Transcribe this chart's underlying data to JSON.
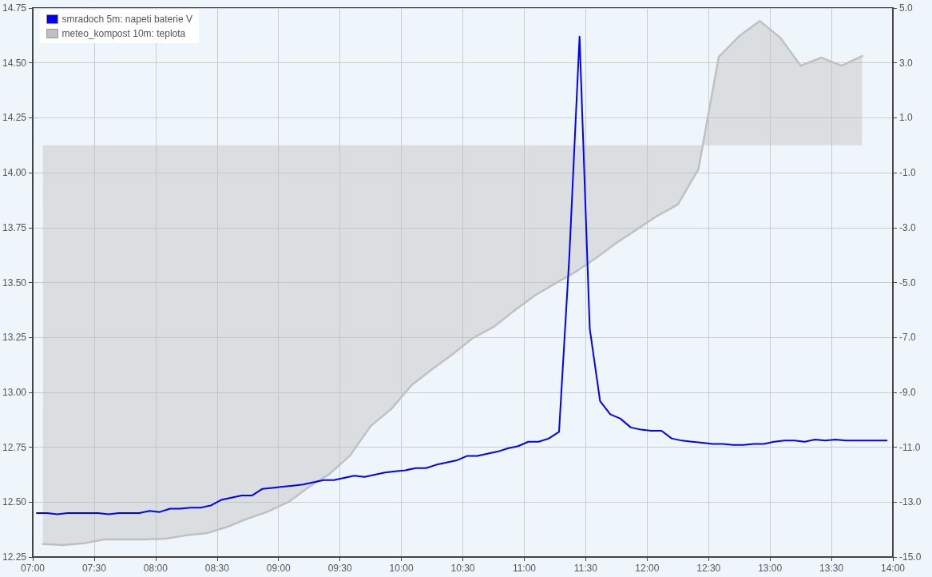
{
  "chart_data": {
    "type": "line",
    "xlim": [
      7,
      14
    ],
    "xticks": [
      {
        "value": 7,
        "label": "07:00"
      },
      {
        "value": 7.5,
        "label": "07:30"
      },
      {
        "value": 8,
        "label": "08:00"
      },
      {
        "value": 8.5,
        "label": "08:30"
      },
      {
        "value": 9,
        "label": "09:00"
      },
      {
        "value": 9.5,
        "label": "09:30"
      },
      {
        "value": 10,
        "label": "10:00"
      },
      {
        "value": 10.5,
        "label": "10:30"
      },
      {
        "value": 11,
        "label": "11:00"
      },
      {
        "value": 11.5,
        "label": "11:30"
      },
      {
        "value": 12,
        "label": "12:00"
      },
      {
        "value": 12.5,
        "label": "12:30"
      },
      {
        "value": 13,
        "label": "13:00"
      },
      {
        "value": 13.5,
        "label": "13:30"
      },
      {
        "value": 14,
        "label": "14:00"
      }
    ],
    "ylim": [
      12.25,
      14.75
    ],
    "yticks": [
      12.25,
      {
        "value": 12.5,
        "label": "12.50"
      },
      12.75,
      {
        "value": 13,
        "label": "13.00"
      },
      13.25,
      {
        "value": 13.5,
        "label": "13.50"
      },
      13.75,
      {
        "value": 14,
        "label": "14.00"
      },
      14.25,
      {
        "value": 14.5,
        "label": "14.50"
      },
      14.75
    ],
    "y2lim": [
      -15,
      5
    ],
    "y2ticks": [
      {
        "value": -15,
        "label": "-15.0"
      },
      {
        "value": -13,
        "label": "-13.0"
      },
      {
        "value": -11,
        "label": "-11.0"
      },
      {
        "value": -9,
        "label": "-9.0"
      },
      {
        "value": -7,
        "label": "-7.0"
      },
      {
        "value": -5,
        "label": "-5.0"
      },
      {
        "value": -3,
        "label": "-3.0"
      },
      {
        "value": -1,
        "label": "-1.0"
      },
      {
        "value": 1,
        "label": "1.0"
      },
      {
        "value": 3,
        "label": "3.0"
      },
      {
        "value": 5,
        "label": "5.0"
      }
    ],
    "grid": true,
    "legend": "top left",
    "marker": "none",
    "line_style": "solid",
    "series": [
      {
        "name": "smradoch 5m: napeti baterie V",
        "color": "#0000ff",
        "x": [
          7.033,
          7.117,
          7.2,
          7.283,
          7.367,
          7.45,
          7.533,
          7.617,
          7.7,
          7.783,
          7.867,
          7.95,
          8.033,
          8.117,
          8.2,
          8.283,
          8.367,
          8.45,
          8.533,
          8.617,
          8.7,
          8.783,
          8.867,
          8.95,
          9.033,
          9.117,
          9.2,
          9.283,
          9.367,
          9.45,
          9.533,
          9.617,
          9.7,
          9.783,
          9.867,
          9.95,
          10.033,
          10.117,
          10.2,
          10.283,
          10.367,
          10.45,
          10.533,
          10.617,
          10.7,
          10.783,
          10.867,
          10.95,
          11.033,
          11.117,
          11.2,
          11.283,
          11.367,
          11.45,
          11.533,
          11.617,
          11.7,
          11.783,
          11.867,
          11.95,
          12.033,
          12.117,
          12.2,
          12.283,
          12.367,
          12.45,
          12.533,
          12.617,
          12.7,
          12.783,
          12.867,
          12.95,
          13.033,
          13.117,
          13.2,
          13.283,
          13.367,
          13.45,
          13.533,
          13.617,
          13.7,
          13.783,
          13.867,
          13.95
        ],
        "values": [
          12.45,
          12.45,
          12.445,
          12.45,
          12.45,
          12.45,
          12.45,
          12.445,
          12.45,
          12.45,
          12.45,
          12.46,
          12.455,
          12.47,
          12.47,
          12.475,
          12.475,
          12.485,
          12.51,
          12.52,
          12.53,
          12.53,
          12.56,
          12.565,
          12.57,
          12.575,
          12.58,
          12.59,
          12.6,
          12.6,
          12.61,
          12.62,
          12.615,
          12.625,
          12.635,
          12.64,
          12.645,
          12.655,
          12.655,
          12.67,
          12.68,
          12.69,
          12.71,
          12.71,
          12.72,
          12.73,
          12.745,
          12.755,
          12.775,
          12.775,
          12.79,
          12.82,
          13.62,
          14.62,
          13.29,
          12.96,
          12.9,
          12.88,
          12.84,
          12.83,
          12.825,
          12.825,
          12.79,
          12.78,
          12.775,
          12.77,
          12.765,
          12.765,
          12.76,
          12.76,
          12.765,
          12.765,
          12.775,
          12.78,
          12.78,
          12.775,
          12.785,
          12.78,
          12.785,
          12.78,
          12.78,
          12.78,
          12.78,
          12.78
        ]
      },
      {
        "name": "meteo_kompost 10m: teplota",
        "color": "#c0c0c0",
        "type": "area",
        "axis": "y2",
        "x": [
          7.083,
          7.25,
          7.417,
          7.583,
          7.75,
          7.917,
          8.083,
          8.25,
          8.417,
          8.583,
          8.75,
          8.917,
          9.083,
          9.25,
          9.417,
          9.583,
          9.75,
          9.917,
          10.083,
          10.25,
          10.417,
          10.583,
          10.75,
          10.917,
          11.083,
          11.25,
          11.417,
          11.583,
          11.75,
          11.917,
          12.083,
          12.25,
          12.417,
          12.583,
          12.75,
          12.917,
          13.083,
          13.25,
          13.417,
          13.583,
          13.75
        ],
        "values": [
          -14.53,
          -14.56,
          -14.5,
          -14.36,
          -14.36,
          -14.36,
          -14.33,
          -14.21,
          -14.13,
          -13.9,
          -13.6,
          -13.34,
          -12.99,
          -12.44,
          -11.97,
          -11.3,
          -10.23,
          -9.61,
          -8.74,
          -8.16,
          -7.61,
          -7.02,
          -6.62,
          -6.03,
          -5.48,
          -5.04,
          -4.61,
          -4.11,
          -3.56,
          -3.06,
          -2.57,
          -2.16,
          -0.88,
          3.22,
          3.98,
          4.53,
          3.92,
          2.9,
          3.19,
          2.9,
          3.25
        ]
      }
    ]
  }
}
